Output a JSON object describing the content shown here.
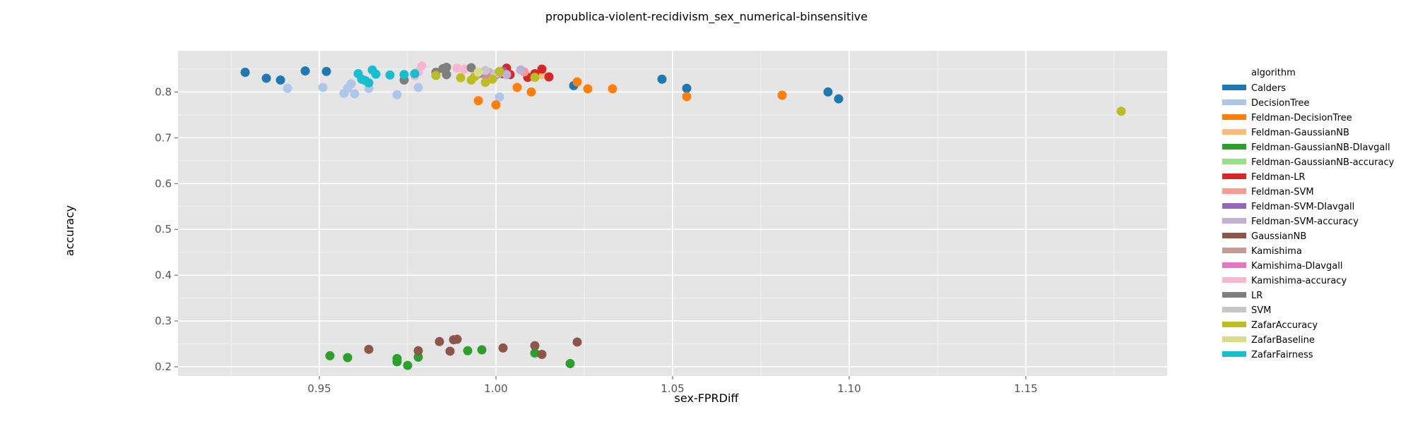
{
  "chart_data": {
    "type": "scatter",
    "title": "propublica-violent-recidivism_sex_numerical-binsensitive",
    "xlabel": "sex-FPRDiff",
    "ylabel": "accuracy",
    "xlim": [
      0.91,
      1.19
    ],
    "ylim": [
      0.18,
      0.89
    ],
    "x_ticks": [
      0.95,
      1.0,
      1.05,
      1.1,
      1.15
    ],
    "x_tick_labels": [
      "0.95",
      "1.00",
      "1.05",
      "1.10",
      "1.15"
    ],
    "y_ticks": [
      0.2,
      0.3,
      0.4,
      0.5,
      0.6,
      0.7,
      0.8
    ],
    "y_tick_labels": [
      "0.2",
      "0.3",
      "0.4",
      "0.5",
      "0.6",
      "0.7",
      "0.8"
    ],
    "grid": true,
    "legend": {
      "title": "algorithm",
      "position": "right"
    },
    "series": [
      {
        "name": "Calders",
        "color": "#1f77b4",
        "points": [
          [
            0.929,
            0.843
          ],
          [
            0.935,
            0.83
          ],
          [
            0.939,
            0.826
          ],
          [
            0.946,
            0.846
          ],
          [
            0.952,
            0.845
          ],
          [
            1.022,
            0.814
          ],
          [
            1.047,
            0.828
          ],
          [
            1.054,
            0.808
          ],
          [
            1.094,
            0.8
          ],
          [
            1.097,
            0.785
          ]
        ]
      },
      {
        "name": "DecisionTree",
        "color": "#aec7e8",
        "points": [
          [
            0.941,
            0.808
          ],
          [
            0.951,
            0.81
          ],
          [
            0.957,
            0.797
          ],
          [
            0.958,
            0.808
          ],
          [
            0.959,
            0.818
          ],
          [
            0.96,
            0.796
          ],
          [
            0.964,
            0.808
          ],
          [
            0.972,
            0.794
          ],
          [
            0.978,
            0.81
          ],
          [
            1.001,
            0.789
          ]
        ]
      },
      {
        "name": "Feldman-DecisionTree",
        "color": "#ff7f0e",
        "points": [
          [
            0.995,
            0.781
          ],
          [
            1.0,
            0.772
          ],
          [
            1.006,
            0.81
          ],
          [
            1.01,
            0.8
          ],
          [
            1.023,
            0.822
          ],
          [
            1.026,
            0.807
          ],
          [
            1.033,
            0.807
          ],
          [
            1.054,
            0.79
          ],
          [
            1.081,
            0.793
          ]
        ]
      },
      {
        "name": "Feldman-GaussianNB",
        "color": "#ffbb78",
        "points": [
          [
            1.011,
            0.836
          ],
          [
            1.013,
            0.838
          ]
        ]
      },
      {
        "name": "Feldman-GaussianNB-DIavgall",
        "color": "#2ca02c",
        "points": [
          [
            0.953,
            0.224
          ],
          [
            0.958,
            0.22
          ],
          [
            0.972,
            0.218
          ],
          [
            0.972,
            0.211
          ],
          [
            0.975,
            0.203
          ],
          [
            0.978,
            0.221
          ],
          [
            0.992,
            0.235
          ],
          [
            0.996,
            0.237
          ],
          [
            1.011,
            0.23
          ],
          [
            1.021,
            0.207
          ]
        ]
      },
      {
        "name": "Feldman-GaussianNB-accuracy",
        "color": "#98df8a",
        "points": [
          [
            0.998,
            0.836
          ]
        ]
      },
      {
        "name": "Feldman-LR",
        "color": "#d62728",
        "points": [
          [
            1.002,
            0.84
          ],
          [
            1.003,
            0.852
          ],
          [
            1.004,
            0.838
          ],
          [
            1.009,
            0.832
          ],
          [
            1.011,
            0.84
          ],
          [
            1.013,
            0.85
          ],
          [
            1.015,
            0.833
          ]
        ]
      },
      {
        "name": "Feldman-SVM",
        "color": "#ff9896",
        "points": [
          [
            1.001,
            0.842
          ],
          [
            1.008,
            0.844
          ]
        ]
      },
      {
        "name": "Feldman-SVM-DIavgall",
        "color": "#9467bd",
        "points": [
          [
            1.0,
            0.838
          ],
          [
            1.002,
            0.845
          ]
        ]
      },
      {
        "name": "Feldman-SVM-accuracy",
        "color": "#c5b0d5",
        "points": [
          [
            0.998,
            0.843
          ],
          [
            1.003,
            0.838
          ],
          [
            1.007,
            0.848
          ]
        ]
      },
      {
        "name": "GaussianNB",
        "color": "#8c564b",
        "points": [
          [
            0.964,
            0.238
          ],
          [
            0.978,
            0.235
          ],
          [
            0.984,
            0.255
          ],
          [
            0.987,
            0.234
          ],
          [
            0.988,
            0.259
          ],
          [
            0.989,
            0.26
          ],
          [
            1.002,
            0.241
          ],
          [
            1.011,
            0.246
          ],
          [
            1.013,
            0.227
          ],
          [
            1.023,
            0.254
          ]
        ]
      },
      {
        "name": "Kamishima",
        "color": "#c49c94",
        "points": [
          [
            0.997,
            0.836
          ]
        ]
      },
      {
        "name": "Kamishima-DIavgall",
        "color": "#e377c2",
        "points": [
          [
            0.997,
            0.84
          ]
        ]
      },
      {
        "name": "Kamishima-accuracy",
        "color": "#f7b6d2",
        "points": [
          [
            0.977,
            0.835
          ],
          [
            0.978,
            0.844
          ],
          [
            0.979,
            0.857
          ],
          [
            0.989,
            0.852
          ],
          [
            0.991,
            0.85
          ]
        ]
      },
      {
        "name": "LR",
        "color": "#7f7f7f",
        "points": [
          [
            0.974,
            0.826
          ],
          [
            0.983,
            0.843
          ],
          [
            0.985,
            0.851
          ],
          [
            0.986,
            0.838
          ],
          [
            0.986,
            0.854
          ],
          [
            0.993,
            0.853
          ],
          [
            0.995,
            0.84
          ]
        ]
      },
      {
        "name": "SVM",
        "color": "#c7c7c7",
        "points": [
          [
            0.997,
            0.847
          ],
          [
            1.0,
            0.84
          ]
        ]
      },
      {
        "name": "ZafarAccuracy",
        "color": "#bcbd22",
        "points": [
          [
            0.983,
            0.836
          ],
          [
            0.99,
            0.831
          ],
          [
            0.993,
            0.826
          ],
          [
            0.994,
            0.834
          ],
          [
            0.997,
            0.821
          ],
          [
            0.999,
            0.828
          ],
          [
            1.001,
            0.845
          ],
          [
            1.011,
            0.832
          ],
          [
            1.177,
            0.758
          ]
        ]
      },
      {
        "name": "ZafarBaseline",
        "color": "#dbdb8d",
        "points": [
          [
            0.995,
            0.843
          ]
        ]
      },
      {
        "name": "ZafarFairness",
        "color": "#17becf",
        "points": [
          [
            0.961,
            0.84
          ],
          [
            0.962,
            0.828
          ],
          [
            0.963,
            0.825
          ],
          [
            0.964,
            0.82
          ],
          [
            0.965,
            0.848
          ],
          [
            0.966,
            0.839
          ],
          [
            0.97,
            0.837
          ],
          [
            0.974,
            0.838
          ],
          [
            0.977,
            0.84
          ]
        ]
      }
    ]
  }
}
